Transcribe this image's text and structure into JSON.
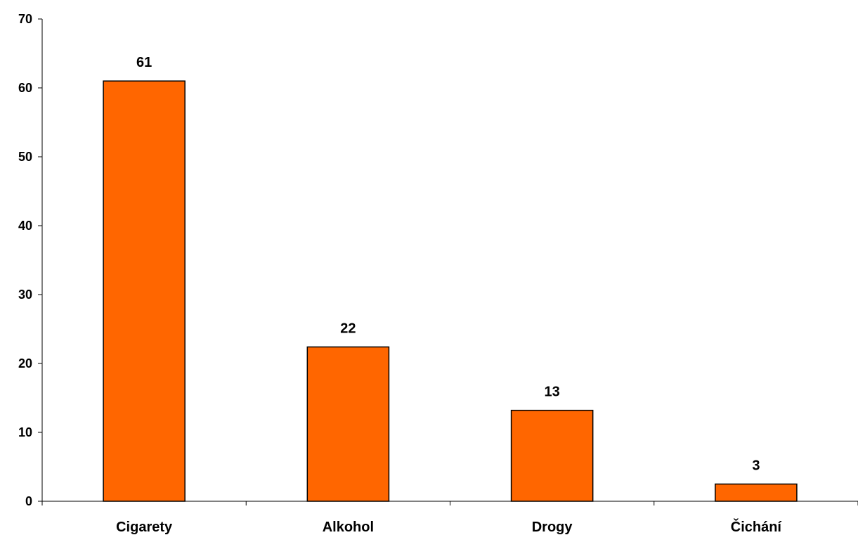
{
  "chart_data": {
    "type": "bar",
    "categories": [
      "Cigarety",
      "Alkohol",
      "Drogy",
      "Čichání"
    ],
    "values": [
      61,
      22.4,
      13.2,
      2.5
    ],
    "data_labels": [
      "61",
      "22",
      "13",
      "3"
    ],
    "title": "",
    "xlabel": "",
    "ylabel": "",
    "ylim": [
      0,
      70
    ],
    "yticks": [
      "0",
      "10",
      "20",
      "30",
      "40",
      "50",
      "60",
      "70"
    ],
    "grid": false,
    "legend": "none",
    "bar_color": "#FF6600",
    "bar_border_color": "#000000"
  }
}
